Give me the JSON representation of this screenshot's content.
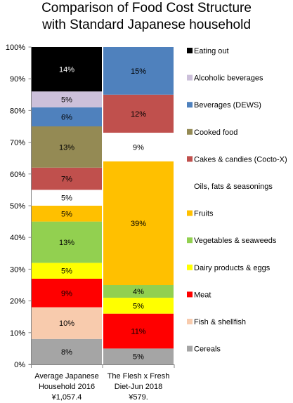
{
  "chart_data": {
    "type": "bar",
    "stacked": true,
    "normalized": true,
    "title": [
      "Comparison of Food Cost Structure",
      "with Standard Japanese household"
    ],
    "categories": [
      [
        "Average Japanese",
        "Household 2016",
        "¥1,057.4"
      ],
      [
        "The Flesh x Fresh",
        "Diet-Jun 2018",
        "¥579."
      ]
    ],
    "ylim": [
      0,
      100
    ],
    "y_ticks": [
      "0%",
      "10%",
      "20%",
      "30%",
      "40%",
      "50%",
      "60%",
      "70%",
      "80%",
      "90%",
      "100%"
    ],
    "grid": false,
    "legend_position": "right",
    "series": [
      {
        "name": "Cereals",
        "color": "#A5A5A5",
        "values": [
          8,
          5
        ],
        "labels": [
          "8%",
          "5%"
        ]
      },
      {
        "name": "Fish & shellfish",
        "color": "#F8CBAD",
        "values": [
          10,
          0
        ],
        "labels": [
          "10%",
          ""
        ]
      },
      {
        "name": "Meat",
        "color": "#FF0000",
        "values": [
          9,
          11
        ],
        "labels": [
          "9%",
          "11%"
        ]
      },
      {
        "name": "Dairy products & eggs",
        "color": "#FFFF00",
        "values": [
          5,
          5
        ],
        "labels": [
          "5%",
          "5%"
        ]
      },
      {
        "name": "Vegetables & seaweeds",
        "color": "#92D050",
        "values": [
          13,
          4
        ],
        "labels": [
          "13%",
          "4%"
        ]
      },
      {
        "name": "Fruits",
        "color": "#FFC000",
        "values": [
          5,
          39
        ],
        "labels": [
          "5%",
          "39%"
        ]
      },
      {
        "name": "Oils, fats  & seasonings",
        "color": "#FFFFFF",
        "values": [
          5,
          9
        ],
        "labels": [
          "5%",
          "9%"
        ]
      },
      {
        "name": "Cakes & candies (Cocto-X)",
        "color": "#C0504D",
        "values": [
          7,
          12
        ],
        "labels": [
          "7%",
          "12%"
        ]
      },
      {
        "name": "Cooked food",
        "color": "#948A54",
        "values": [
          13,
          0
        ],
        "labels": [
          "13%",
          ""
        ]
      },
      {
        "name": "Beverages (DEWS)",
        "color": "#4F81BD",
        "values": [
          6,
          15
        ],
        "labels": [
          "6%",
          "15%"
        ]
      },
      {
        "name": "Alcoholic beverages",
        "color": "#CCC0DA",
        "values": [
          5,
          0
        ],
        "labels": [
          "5%",
          ""
        ]
      },
      {
        "name": "Eating out",
        "color": "#000000",
        "values": [
          14,
          0
        ],
        "labels": [
          "14%",
          ""
        ]
      }
    ]
  }
}
